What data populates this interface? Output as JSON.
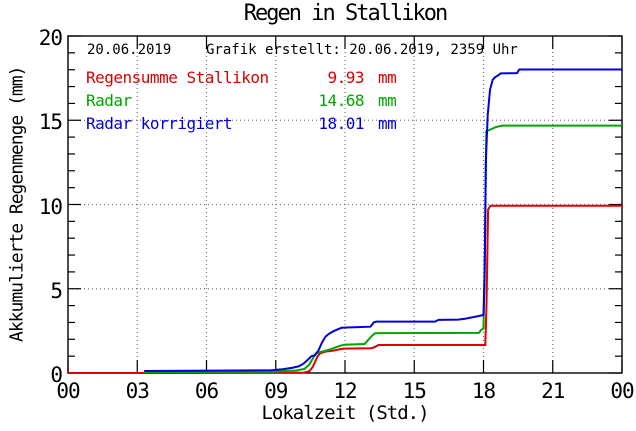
{
  "chart_data": {
    "type": "line",
    "title": "Regen in Stallikon",
    "xlabel": "Lokalzeit (Std.)",
    "ylabel": "Akkumulierte Regenmenge (mm)",
    "info": {
      "date": "20.06.2019",
      "created": "Grafik erstellt: 20.06.2019, 2359 Uhr"
    },
    "xlim": [
      0,
      24
    ],
    "ylim": [
      0,
      20
    ],
    "x_ticks": {
      "values": [
        0,
        3,
        6,
        9,
        12,
        15,
        18,
        21,
        24
      ],
      "labels": [
        "00",
        "03",
        "06",
        "09",
        "12",
        "15",
        "18",
        "21",
        "00"
      ]
    },
    "y_ticks": {
      "values": [
        0,
        5,
        10,
        15,
        20
      ],
      "labels": [
        "0",
        "5",
        "10",
        "15",
        "20"
      ]
    },
    "y_minor_step": 1,
    "grid": {
      "style": "dotted",
      "color": "#777777",
      "x_lines": [
        3,
        6,
        9,
        12,
        15,
        18,
        21
      ],
      "y_lines": [
        5,
        10,
        15
      ]
    },
    "frame_color": "#000000",
    "legend": [
      {
        "label": "Regensumme Stallikon",
        "value": "9.93",
        "unit": "mm",
        "color": "#dd0000"
      },
      {
        "label": "Radar",
        "value": "14.68",
        "unit": "mm",
        "color": "#00a500"
      },
      {
        "label": "Radar korrigiert",
        "value": "18.01",
        "unit": "mm",
        "color": "#0000dd"
      }
    ],
    "series": [
      {
        "name": "Regensumme Stallikon",
        "color": "#dd0000",
        "final_mm": 9.93,
        "points": [
          [
            0,
            0
          ],
          [
            3.2,
            0
          ],
          [
            10.2,
            0.02
          ],
          [
            10.45,
            0.1
          ],
          [
            10.6,
            0.35
          ],
          [
            10.7,
            0.65
          ],
          [
            10.8,
            0.95
          ],
          [
            10.9,
            1.15
          ],
          [
            11.05,
            1.22
          ],
          [
            11.2,
            1.28
          ],
          [
            11.5,
            1.33
          ],
          [
            11.75,
            1.4
          ],
          [
            11.95,
            1.45
          ],
          [
            13.15,
            1.47
          ],
          [
            13.3,
            1.55
          ],
          [
            13.45,
            1.66
          ],
          [
            18.08,
            1.66
          ],
          [
            18.13,
            4.0
          ],
          [
            18.2,
            9.7
          ],
          [
            18.3,
            9.93
          ],
          [
            24,
            9.93
          ]
        ]
      },
      {
        "name": "Radar",
        "color": "#00a500",
        "final_mm": 14.68,
        "points": [
          [
            3.3,
            0.06
          ],
          [
            8.9,
            0.08
          ],
          [
            9.4,
            0.12
          ],
          [
            9.9,
            0.15
          ],
          [
            10.25,
            0.25
          ],
          [
            10.45,
            0.5
          ],
          [
            10.6,
            0.85
          ],
          [
            10.72,
            1.15
          ],
          [
            10.85,
            1.22
          ],
          [
            11.1,
            1.3
          ],
          [
            11.4,
            1.42
          ],
          [
            11.7,
            1.58
          ],
          [
            11.95,
            1.68
          ],
          [
            12.85,
            1.72
          ],
          [
            13.0,
            1.95
          ],
          [
            13.15,
            2.18
          ],
          [
            13.3,
            2.36
          ],
          [
            17.8,
            2.38
          ],
          [
            17.9,
            2.55
          ],
          [
            18.0,
            2.65
          ],
          [
            18.07,
            8.0
          ],
          [
            18.12,
            14.35
          ],
          [
            18.3,
            14.45
          ],
          [
            18.55,
            14.6
          ],
          [
            18.8,
            14.68
          ],
          [
            24,
            14.68
          ]
        ]
      },
      {
        "name": "Radar korrigiert",
        "color": "#0000dd",
        "final_mm": 18.01,
        "points": [
          [
            3.3,
            0.12
          ],
          [
            8.8,
            0.16
          ],
          [
            9.3,
            0.22
          ],
          [
            9.7,
            0.3
          ],
          [
            10.0,
            0.4
          ],
          [
            10.2,
            0.55
          ],
          [
            10.4,
            0.8
          ],
          [
            10.55,
            1.0
          ],
          [
            10.7,
            1.05
          ],
          [
            10.85,
            1.35
          ],
          [
            11.0,
            1.8
          ],
          [
            11.15,
            2.15
          ],
          [
            11.3,
            2.32
          ],
          [
            11.5,
            2.48
          ],
          [
            11.7,
            2.6
          ],
          [
            11.85,
            2.68
          ],
          [
            12.1,
            2.7
          ],
          [
            13.1,
            2.75
          ],
          [
            13.25,
            3.0
          ],
          [
            13.35,
            3.05
          ],
          [
            15.9,
            3.05
          ],
          [
            16.05,
            3.15
          ],
          [
            16.9,
            3.17
          ],
          [
            17.2,
            3.22
          ],
          [
            17.5,
            3.3
          ],
          [
            17.8,
            3.38
          ],
          [
            18.0,
            3.44
          ],
          [
            18.05,
            6.0
          ],
          [
            18.1,
            12.5
          ],
          [
            18.18,
            15.3
          ],
          [
            18.28,
            16.8
          ],
          [
            18.4,
            17.4
          ],
          [
            18.5,
            17.55
          ],
          [
            18.65,
            17.68
          ],
          [
            18.75,
            17.78
          ],
          [
            19.45,
            17.8
          ],
          [
            19.55,
            18.01
          ],
          [
            24,
            18.01
          ]
        ]
      }
    ]
  }
}
